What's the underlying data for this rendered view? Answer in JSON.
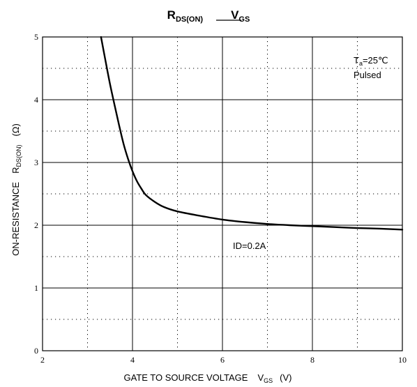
{
  "chart_data": {
    "type": "line",
    "title": {
      "left_main": "R",
      "left_sub": "DS(ON)",
      "right_main": "V",
      "right_sub": "GS"
    },
    "xlabel": {
      "text": "GATE TO SOURCE VOLTAGE",
      "sym_main": "V",
      "sym_sub": "GS",
      "unit": "(V)"
    },
    "ylabel": {
      "text": "ON-RESISTANCE",
      "sym_main": "R",
      "sym_sub": "DS(ON)",
      "unit": "(Ω)"
    },
    "xlim": [
      2,
      10
    ],
    "ylim": [
      0,
      5
    ],
    "x_ticks": [
      "2",
      "4",
      "6",
      "8",
      "10"
    ],
    "y_ticks": [
      "0",
      "1",
      "2",
      "3",
      "4",
      "5"
    ],
    "grid": "solid at major ticks, dotted at minor ticks",
    "annotations": {
      "ta_main": "T",
      "ta_sub": "a",
      "ta_rest": "=25℃",
      "pulsed": "Pulsed",
      "id": "ID=0.2A"
    },
    "series": [
      {
        "color": "#000000",
        "points": [
          [
            3.3,
            5.0
          ],
          [
            3.4,
            4.62
          ],
          [
            3.5,
            4.25
          ],
          [
            3.6,
            3.92
          ],
          [
            3.7,
            3.6
          ],
          [
            3.8,
            3.3
          ],
          [
            3.9,
            3.06
          ],
          [
            4.0,
            2.86
          ],
          [
            4.1,
            2.7
          ],
          [
            4.2,
            2.58
          ],
          [
            4.3,
            2.48
          ],
          [
            4.5,
            2.37
          ],
          [
            4.7,
            2.29
          ],
          [
            5.0,
            2.22
          ],
          [
            5.5,
            2.15
          ],
          [
            6.0,
            2.09
          ],
          [
            6.5,
            2.05
          ],
          [
            7.0,
            2.02
          ],
          [
            7.5,
            2.0
          ],
          [
            8.0,
            1.985
          ],
          [
            8.5,
            1.97
          ],
          [
            9.0,
            1.955
          ],
          [
            9.5,
            1.945
          ],
          [
            10.0,
            1.93
          ]
        ]
      }
    ]
  }
}
